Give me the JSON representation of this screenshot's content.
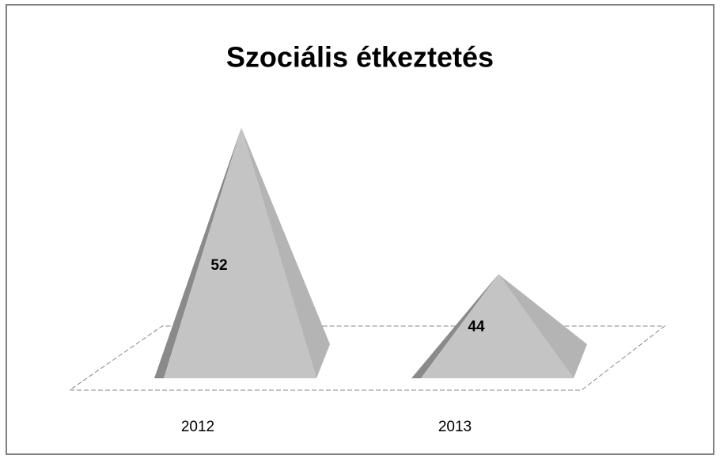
{
  "chart_data": {
    "type": "pyramid",
    "title": "Szociális étkeztetés",
    "categories": [
      "2012",
      "2013"
    ],
    "values": [
      52,
      44
    ],
    "color": "#c4c4c4",
    "ylim": [
      39,
      55
    ]
  }
}
